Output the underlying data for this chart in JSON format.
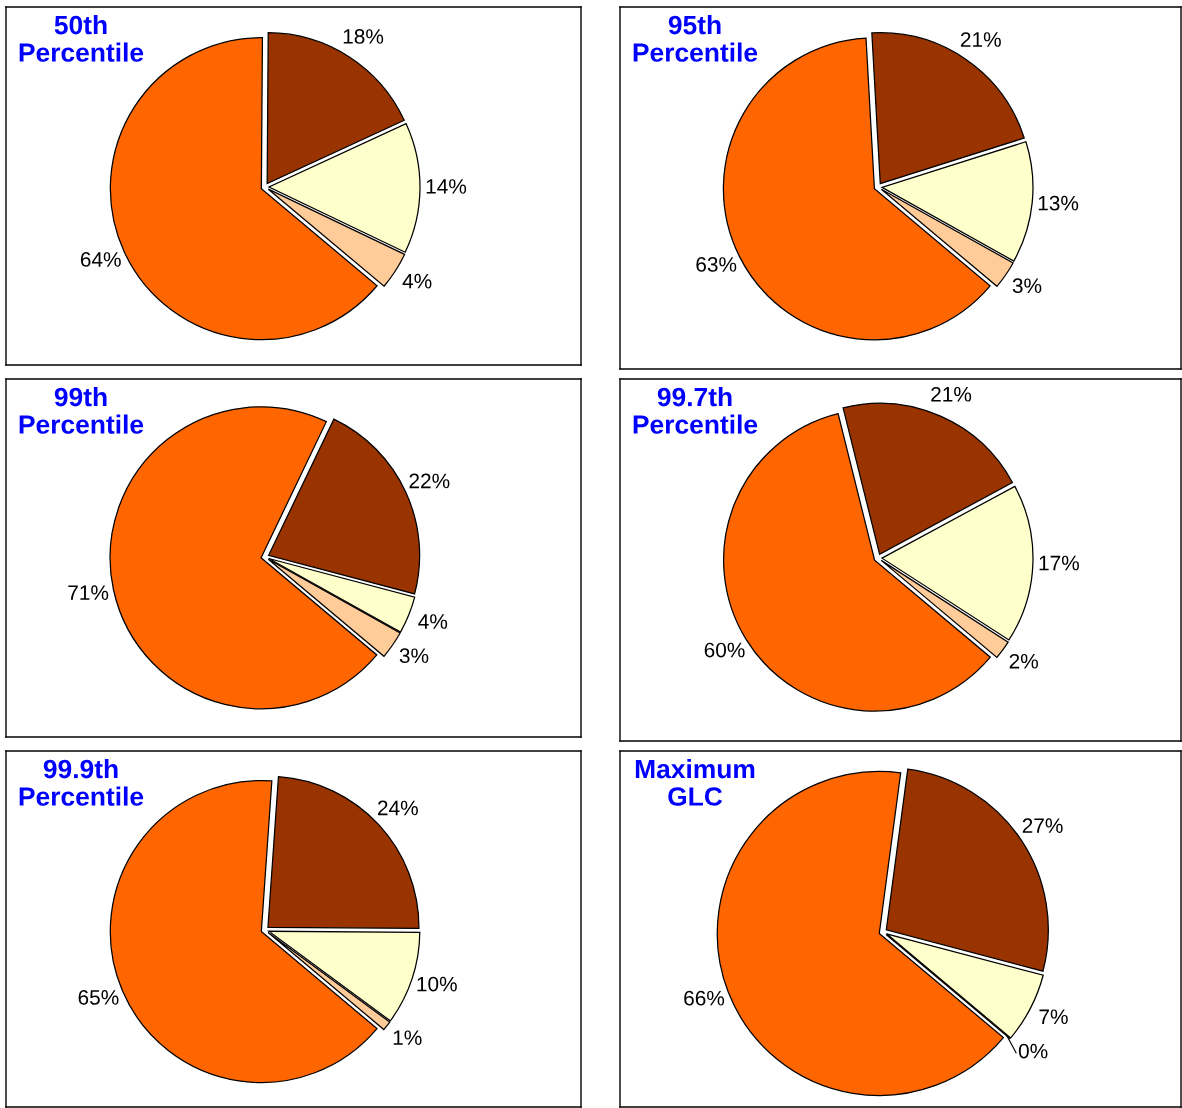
{
  "chart_data": [
    {
      "type": "pie",
      "title": "50th\nPercentile",
      "categories": [
        null,
        null,
        null,
        null
      ],
      "values": [
        18,
        14,
        4,
        64
      ],
      "value_labels": [
        "18%",
        "14%",
        "4%",
        "64%"
      ],
      "colors": [
        "#993300",
        "#ffffcc",
        "#ffcc99",
        "#ff6600"
      ]
    },
    {
      "type": "pie",
      "title": "95th\nPercentile",
      "categories": [
        null,
        null,
        null,
        null
      ],
      "values": [
        21,
        13,
        3,
        63
      ],
      "value_labels": [
        "21%",
        "13%",
        "3%",
        "63%"
      ],
      "colors": [
        "#993300",
        "#ffffcc",
        "#ffcc99",
        "#ff6600"
      ]
    },
    {
      "type": "pie",
      "title": "99th\nPercentile",
      "categories": [
        null,
        null,
        null,
        null
      ],
      "values": [
        22,
        4,
        3,
        71
      ],
      "value_labels": [
        "22%",
        "4%",
        "3%",
        "71%"
      ],
      "colors": [
        "#993300",
        "#ffffcc",
        "#ffcc99",
        "#ff6600"
      ]
    },
    {
      "type": "pie",
      "title": "99.7th\nPercentile",
      "categories": [
        null,
        null,
        null,
        null
      ],
      "values": [
        21,
        17,
        2,
        60
      ],
      "value_labels": [
        "21%",
        "17%",
        "2%",
        "60%"
      ],
      "colors": [
        "#993300",
        "#ffffcc",
        "#ffcc99",
        "#ff6600"
      ]
    },
    {
      "type": "pie",
      "title": "99.9th\nPercentile",
      "categories": [
        null,
        null,
        null,
        null
      ],
      "values": [
        24,
        10,
        1,
        65
      ],
      "value_labels": [
        "24%",
        "10%",
        "1%",
        "65%"
      ],
      "colors": [
        "#993300",
        "#ffffcc",
        "#ffcc99",
        "#ff6600"
      ]
    },
    {
      "type": "pie",
      "title": "Maximum\nGLC",
      "categories": [
        null,
        null,
        null,
        null
      ],
      "values": [
        27,
        7,
        0,
        66
      ],
      "value_labels": [
        "27%",
        "7%",
        "0%",
        "66%"
      ],
      "colors": [
        "#993300",
        "#ffffcc",
        "#ffcc99",
        "#ff6600"
      ]
    }
  ]
}
